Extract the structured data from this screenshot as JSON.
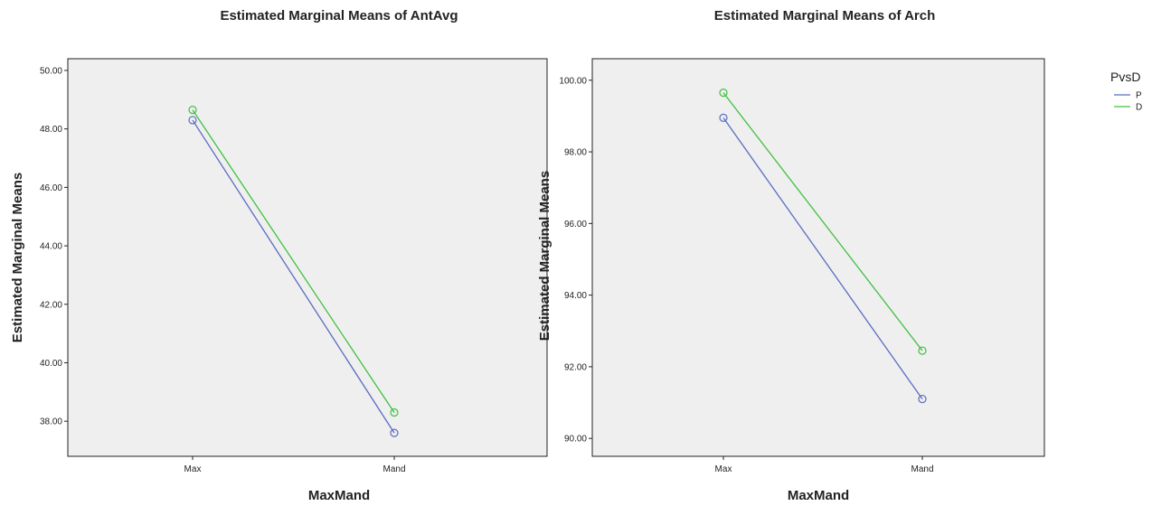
{
  "legend": {
    "title": "PvsD",
    "items": [
      {
        "label": "P",
        "color": "#5a6cc0"
      },
      {
        "label": "D",
        "color": "#40c040"
      }
    ]
  },
  "chart_data": [
    {
      "type": "line",
      "title": "Estimated Marginal Means of AntAvg",
      "xlabel": "MaxMand",
      "ylabel": "Estimated Marginal Means",
      "categories": [
        "Max",
        "Mand"
      ],
      "ylim": [
        36.8,
        50.4
      ],
      "yticks": [
        "38.00",
        "40.00",
        "42.00",
        "44.00",
        "46.00",
        "48.00",
        "50.00"
      ],
      "grid": false,
      "series": [
        {
          "name": "P",
          "values": [
            48.3,
            37.6
          ],
          "color": "#5a6cc0"
        },
        {
          "name": "D",
          "values": [
            48.65,
            38.3
          ],
          "color": "#40c040"
        }
      ]
    },
    {
      "type": "line",
      "title": "Estimated Marginal Means of Arch",
      "xlabel": "MaxMand",
      "ylabel": "Estimated Marginal Means",
      "categories": [
        "Max",
        "Mand"
      ],
      "ylim": [
        89.5,
        100.6
      ],
      "yticks": [
        "90.00",
        "92.00",
        "94.00",
        "96.00",
        "98.00",
        "100.00"
      ],
      "grid": false,
      "series": [
        {
          "name": "P",
          "values": [
            98.95,
            91.1
          ],
          "color": "#5a6cc0"
        },
        {
          "name": "D",
          "values": [
            99.65,
            92.45
          ],
          "color": "#40c040"
        }
      ]
    }
  ]
}
